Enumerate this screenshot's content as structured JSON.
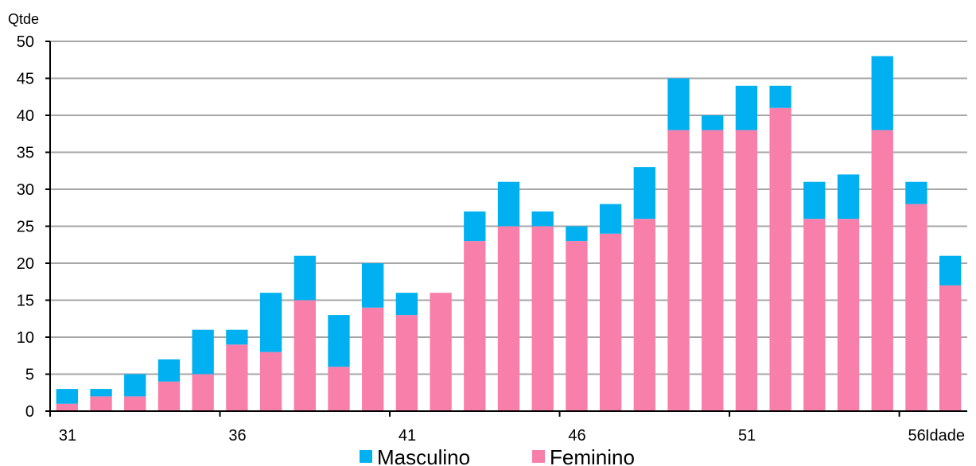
{
  "chart_data": {
    "type": "bar",
    "stacked": true,
    "ylabel": "Qtde",
    "xlabel": "Idade",
    "ylim": [
      0,
      50
    ],
    "yticks": [
      0,
      5,
      10,
      15,
      20,
      25,
      30,
      35,
      40,
      45,
      50
    ],
    "x": [
      31,
      32,
      33,
      34,
      35,
      36,
      37,
      38,
      39,
      40,
      41,
      42,
      43,
      44,
      45,
      46,
      47,
      48,
      49,
      50,
      51,
      52,
      53,
      54,
      55,
      56,
      57
    ],
    "xtick_labels": [
      {
        "x": 31,
        "label": "31"
      },
      {
        "x": 36,
        "label": "36"
      },
      {
        "x": 41,
        "label": "41"
      },
      {
        "x": 46,
        "label": "46"
      },
      {
        "x": 51,
        "label": "51"
      },
      {
        "x": 56,
        "label": "56"
      }
    ],
    "grid": true,
    "legend": "bottom",
    "series": [
      {
        "name": "Feminino",
        "color": "#f77fa9",
        "values": [
          1,
          2,
          2,
          4,
          5,
          9,
          8,
          15,
          6,
          14,
          13,
          16,
          23,
          25,
          25,
          23,
          24,
          26,
          38,
          38,
          38,
          41,
          26,
          26,
          38,
          28,
          17
        ]
      },
      {
        "name": "Masculino",
        "color": "#00b0f0",
        "values": [
          2,
          1,
          3,
          3,
          6,
          2,
          8,
          6,
          7,
          6,
          3,
          0,
          4,
          6,
          2,
          2,
          4,
          7,
          7,
          2,
          6,
          3,
          5,
          6,
          10,
          3,
          4
        ]
      }
    ],
    "legend_order": [
      "Masculino",
      "Feminino"
    ]
  }
}
